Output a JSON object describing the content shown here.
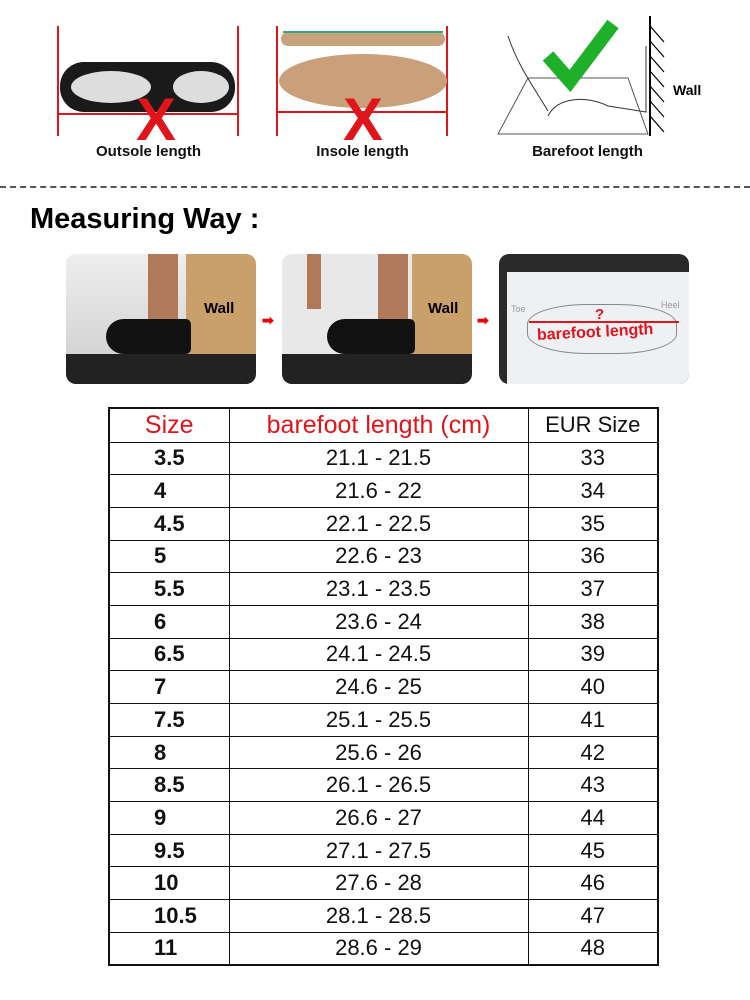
{
  "top_panels": [
    {
      "caption": "Outsole length",
      "mark": "x"
    },
    {
      "caption": "Insole length",
      "mark": "x"
    },
    {
      "caption": "Barefoot length",
      "mark": "check",
      "wall_label": "Wall"
    }
  ],
  "measuring": {
    "title": "Measuring Way :",
    "steps": [
      {
        "wall_label": "Wall"
      },
      {
        "wall_label": "Wall"
      },
      {
        "label": "barefoot length",
        "question": "?",
        "toe": "Toe",
        "heel": "Heel"
      }
    ]
  },
  "colors": {
    "red": "#e0141b",
    "green": "#1fb02a"
  },
  "table": {
    "headers": [
      "Size",
      "barefoot length (cm)",
      "EUR Size"
    ],
    "rows": [
      [
        "3.5",
        "21.1 - 21.5",
        "33"
      ],
      [
        "4",
        "21.6 - 22",
        "34"
      ],
      [
        "4.5",
        "22.1 - 22.5",
        "35"
      ],
      [
        "5",
        "22.6 - 23",
        "36"
      ],
      [
        "5.5",
        "23.1 - 23.5",
        "37"
      ],
      [
        "6",
        "23.6 - 24",
        "38"
      ],
      [
        "6.5",
        "24.1 - 24.5",
        "39"
      ],
      [
        "7",
        "24.6 - 25",
        "40"
      ],
      [
        "7.5",
        "25.1 - 25.5",
        "41"
      ],
      [
        "8",
        "25.6 - 26",
        "42"
      ],
      [
        "8.5",
        "26.1 - 26.5",
        "43"
      ],
      [
        "9",
        "26.6 - 27",
        "44"
      ],
      [
        "9.5",
        "27.1 - 27.5",
        "45"
      ],
      [
        "10",
        "27.6 - 28",
        "46"
      ],
      [
        "10.5",
        "28.1 - 28.5",
        "47"
      ],
      [
        "11",
        "28.6 - 29",
        "48"
      ]
    ]
  }
}
